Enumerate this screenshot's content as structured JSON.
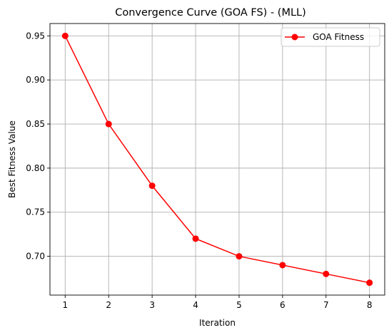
{
  "chart_data": {
    "type": "line",
    "title": "Convergence Curve (GOA FS) - (MLL)",
    "xlabel": "Iteration",
    "ylabel": "Best Fitness Value",
    "x": [
      1,
      2,
      3,
      4,
      5,
      6,
      7,
      8
    ],
    "series": [
      {
        "name": "GOA Fitness",
        "values": [
          0.95,
          0.85,
          0.78,
          0.72,
          0.7,
          0.69,
          0.68,
          0.67
        ],
        "color": "#ff0000",
        "marker": "circle"
      }
    ],
    "xticks": [
      1,
      2,
      3,
      4,
      5,
      6,
      7,
      8
    ],
    "xtick_labels": [
      "1",
      "2",
      "3",
      "4",
      "5",
      "6",
      "7",
      "8"
    ],
    "yticks": [
      0.7,
      0.75,
      0.8,
      0.85,
      0.9,
      0.95
    ],
    "ytick_labels": [
      "0.70",
      "0.75",
      "0.80",
      "0.85",
      "0.90",
      "0.95"
    ],
    "xlim": [
      0.65,
      8.35
    ],
    "ylim": [
      0.656,
      0.964
    ],
    "grid": true,
    "legend_position": "top-right"
  }
}
